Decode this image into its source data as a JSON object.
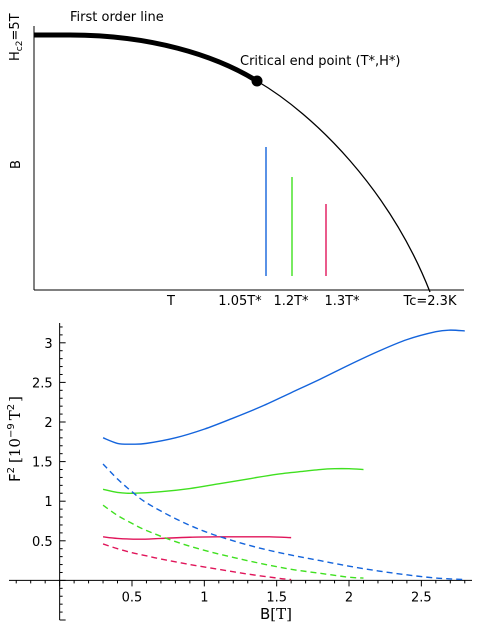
{
  "chart_data": [
    {
      "type": "line",
      "panel": "top",
      "annotation_first_order": "First order line",
      "annotation_critical": "Critical end point (T*,H*)",
      "ylabel_top_main": "H",
      "ylabel_top_sub": "c2",
      "ylabel_top_rest": "=5T",
      "ylabel_mid": "B",
      "xtick_labels": [
        "T",
        "1.05T*",
        "1.2T*",
        "1.3T*",
        "Tc=2.3K"
      ],
      "vertical_markers": [
        {
          "label": "1.05T*",
          "color": "#1464dc"
        },
        {
          "label": "1.2T*",
          "color": "#40e020"
        },
        {
          "label": "1.3T*",
          "color": "#e0155a"
        }
      ],
      "first_order_line_style": "thick",
      "critical_end_point_marker": "filled-circle"
    },
    {
      "type": "line",
      "panel": "bottom",
      "xlabel_main": "B",
      "xlabel_unit": "[T]",
      "ylabel_main": "F",
      "ylabel_exp": "2",
      "ylabel_bracket_open": "[10",
      "ylabel_bracket_exp": "−9",
      "ylabel_bracket_unit": "T",
      "ylabel_bracket_unit_exp": "2",
      "ylabel_bracket_close": "]",
      "xlim": [
        -0.35,
        2.85
      ],
      "ylim": [
        -0.5,
        3.25
      ],
      "xticks": [
        "0.5",
        "1",
        "1.5",
        "2",
        "2.5"
      ],
      "yticks": [
        "0.5",
        "1",
        "1.5",
        "2",
        "2.5",
        "3"
      ],
      "series": [
        {
          "color": "#1464dc",
          "style": "solid",
          "x": [
            0.3,
            0.4,
            0.5,
            0.6,
            0.8,
            1.0,
            1.2,
            1.4,
            1.6,
            1.8,
            2.0,
            2.2,
            2.4,
            2.6,
            2.7,
            2.8
          ],
          "y": [
            1.8,
            1.73,
            1.72,
            1.73,
            1.8,
            1.91,
            2.05,
            2.2,
            2.37,
            2.54,
            2.72,
            2.89,
            3.04,
            3.14,
            3.16,
            3.15
          ]
        },
        {
          "color": "#40e020",
          "style": "solid",
          "x": [
            0.3,
            0.4,
            0.5,
            0.7,
            0.9,
            1.1,
            1.3,
            1.5,
            1.7,
            1.8,
            1.9,
            2.0,
            2.1
          ],
          "y": [
            1.15,
            1.11,
            1.1,
            1.12,
            1.16,
            1.22,
            1.28,
            1.34,
            1.38,
            1.4,
            1.41,
            1.41,
            1.4
          ]
        },
        {
          "color": "#e0155a",
          "style": "solid",
          "x": [
            0.3,
            0.4,
            0.55,
            0.7,
            0.9,
            1.1,
            1.3,
            1.45,
            1.6
          ],
          "y": [
            0.55,
            0.53,
            0.52,
            0.53,
            0.545,
            0.55,
            0.55,
            0.55,
            0.54
          ]
        },
        {
          "color": "#1464dc",
          "style": "dashed",
          "x": [
            0.3,
            0.4,
            0.5,
            0.6,
            0.8,
            1.0,
            1.2,
            1.4,
            1.6,
            1.8,
            2.0,
            2.2,
            2.4,
            2.6,
            2.8
          ],
          "y": [
            1.47,
            1.28,
            1.12,
            0.98,
            0.78,
            0.62,
            0.5,
            0.4,
            0.32,
            0.25,
            0.18,
            0.12,
            0.07,
            0.03,
            0.01
          ]
        },
        {
          "color": "#40e020",
          "style": "dashed",
          "x": [
            0.3,
            0.4,
            0.5,
            0.6,
            0.8,
            1.0,
            1.2,
            1.4,
            1.6,
            1.8,
            2.0,
            2.1
          ],
          "y": [
            0.95,
            0.82,
            0.72,
            0.63,
            0.49,
            0.38,
            0.29,
            0.21,
            0.14,
            0.09,
            0.04,
            0.03
          ]
        },
        {
          "color": "#e0155a",
          "style": "dashed",
          "x": [
            0.3,
            0.4,
            0.5,
            0.6,
            0.7,
            0.9,
            1.1,
            1.3,
            1.5,
            1.6
          ],
          "y": [
            0.46,
            0.4,
            0.35,
            0.31,
            0.27,
            0.2,
            0.14,
            0.08,
            0.03,
            0.01
          ]
        }
      ]
    }
  ]
}
